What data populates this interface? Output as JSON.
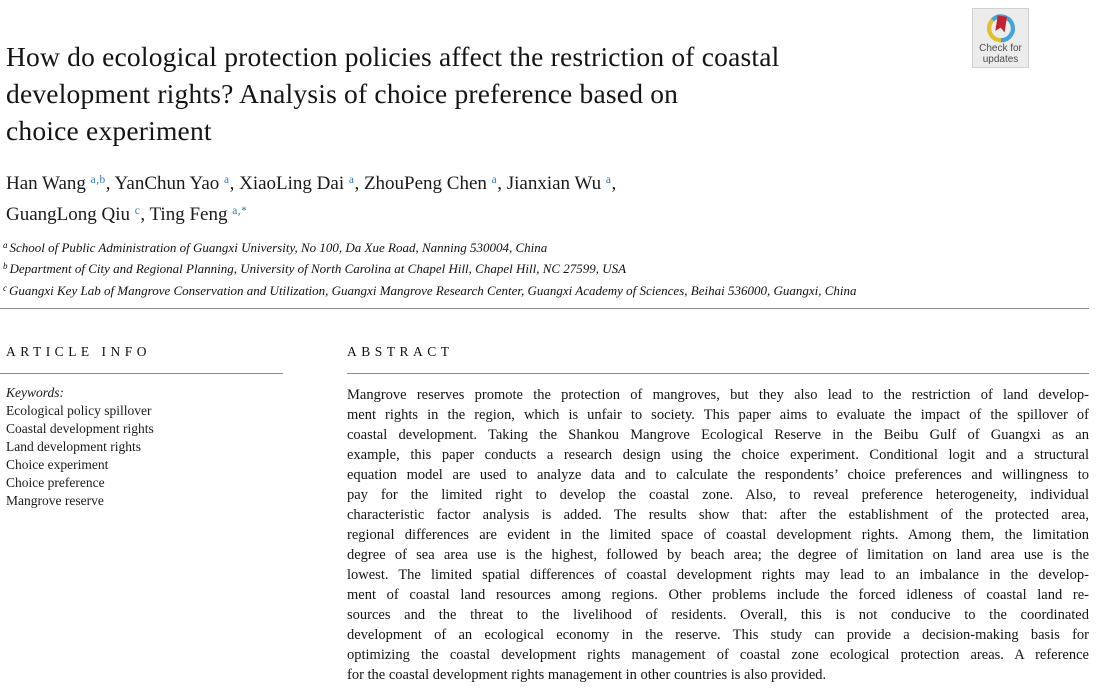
{
  "colors": {
    "accent_blue": "#2f7cc0",
    "rule_gray": "#8a8a8a",
    "badge_ring_blue": "#45a5d6",
    "badge_ring_yellow": "#e2bf2d",
    "badge_bookmark_red": "#c5202e",
    "badge_text_gray": "#4d4d4d"
  },
  "badge": {
    "label_line1": "Check for",
    "label_line2": "updates"
  },
  "title": {
    "lines": [
      "How do ecological protection policies affect the restriction of coastal",
      "development rights? Analysis of choice preference based on",
      "choice experiment"
    ]
  },
  "authors": {
    "lines": [
      [
        {
          "text": "Han Wang ",
          "sup": "a,b"
        },
        {
          "text": ", YanChun Yao ",
          "sup": "a"
        },
        {
          "text": ", XiaoLing Dai ",
          "sup": "a"
        },
        {
          "text": ", ZhouPeng Chen ",
          "sup": "a"
        },
        {
          "text": ", Jianxian Wu ",
          "sup": "a"
        },
        {
          "text": ",",
          "sup": ""
        }
      ],
      [
        {
          "text": "GuangLong Qiu ",
          "sup": "c"
        },
        {
          "text": ", Ting Feng ",
          "sup": "a,*"
        }
      ]
    ]
  },
  "affiliations": [
    {
      "sup": "a",
      "text": "School of Public Administration of Guangxi University, No 100, Da Xue Road, Nanning 530004, China"
    },
    {
      "sup": "b",
      "text": "Department of City and Regional Planning, University of North Carolina at Chapel Hill, Chapel Hill, NC 27599, USA"
    },
    {
      "sup": "c",
      "text": "Guangxi Key Lab of Mangrove Conservation and Utilization, Guangxi Mangrove Research Center, Guangxi Academy of Sciences, Beihai 536000, Guangxi, China"
    }
  ],
  "article_info": {
    "heading": "ARTICLE INFO",
    "keywords_label": "Keywords:",
    "keywords": [
      "Ecological policy spillover",
      "Coastal development rights",
      "Land development rights",
      "Choice experiment",
      "Choice preference",
      "Mangrove reserve"
    ]
  },
  "abstract": {
    "heading": "ABSTRACT",
    "lines": [
      "Mangrove reserves promote the protection of mangroves, but they also lead to the restriction of land develop-",
      "ment rights in the region, which is unfair to society. This paper aims to evaluate the impact of the spillover of",
      "coastal development. Taking the Shankou Mangrove Ecological Reserve in the Beibu Gulf of Guangxi as an",
      "example, this paper conducts a research design using the choice experiment. Conditional logit and a structural",
      "equation model are used to analyze data and to calculate the respondents’ choice preferences and willingness to",
      "pay for the limited right to develop the coastal zone. Also, to reveal preference heterogeneity, individual",
      "characteristic factor analysis is added. The results show that: after the establishment of the protected area,",
      "regional differences are evident in the limited space of coastal development rights. Among them, the limitation",
      "degree of sea area use is the highest, followed by beach area; the degree of limitation on land area use is the",
      "lowest. The limited spatial differences of coastal development rights may lead to an imbalance in the develop-",
      "ment of coastal land resources among regions. Other problems include the forced idleness of coastal land re-",
      "sources and the threat to the livelihood of residents. Overall, this is not conducive to the coordinated",
      "development of an ecological economy in the reserve. This study can provide a decision-making basis for",
      "optimizing the coastal development rights management of coastal zone ecological protection areas. A reference",
      "for the coastal development rights management in other countries is also provided."
    ]
  }
}
